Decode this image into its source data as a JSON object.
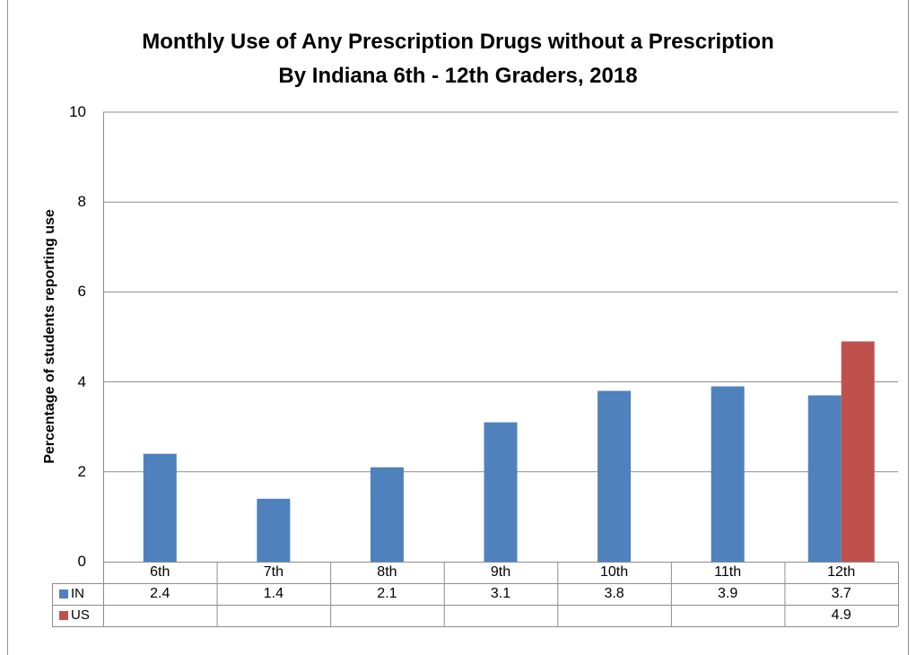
{
  "chart_data": {
    "type": "bar",
    "title": "Monthly Use of Any Prescription Drugs without a Prescription",
    "subtitle": "By Indiana 6th - 12th Graders, 2018",
    "ylabel": "Percentage of students reporting use",
    "xlabel": "",
    "ylim": [
      0,
      10
    ],
    "yticks": [
      0,
      2,
      4,
      6,
      8,
      10
    ],
    "grid": true,
    "legend": "data-table",
    "categories": [
      "6th",
      "7th",
      "8th",
      "9th",
      "10th",
      "11th",
      "12th"
    ],
    "series": [
      {
        "name": "IN",
        "color": "#4f81bd",
        "values": [
          2.4,
          1.4,
          2.1,
          3.1,
          3.8,
          3.9,
          3.7
        ],
        "labels": [
          "2.4",
          "1.4",
          "2.1",
          "3.1",
          "3.8",
          "3.9",
          "3.7"
        ]
      },
      {
        "name": "US",
        "color": "#c0504d",
        "values": [
          null,
          null,
          null,
          null,
          null,
          null,
          4.9
        ],
        "labels": [
          "",
          "",
          "",
          "",
          "",
          "",
          "4.9"
        ]
      }
    ]
  }
}
